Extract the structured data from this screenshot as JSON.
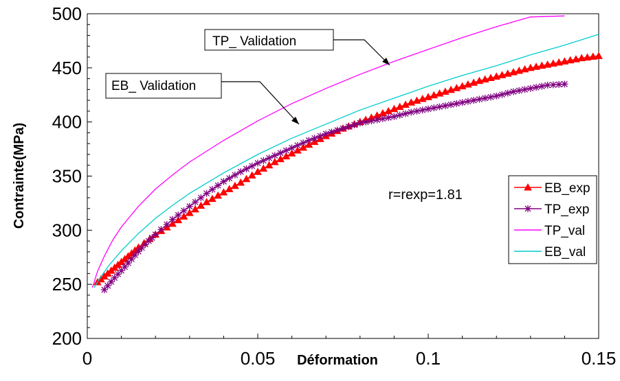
{
  "chart_data": {
    "type": "line",
    "xlabel": "Déformation",
    "ylabel": "Contrainte(MPa)",
    "xlim": [
      0,
      0.15
    ],
    "ylim": [
      200,
      500
    ],
    "x_ticks": [
      "0",
      "0.05",
      "0.1",
      "0.15"
    ],
    "y_ticks": [
      "200",
      "250",
      "300",
      "350",
      "400",
      "450",
      "500"
    ],
    "legend_position": "right",
    "grid": false,
    "annotation_text": "r=rexp=1.81",
    "callouts": [
      {
        "label": "TP_ Validation",
        "series": "TP_val"
      },
      {
        "label": "EB_ Validation",
        "series": "EB_val"
      }
    ],
    "series": [
      {
        "name": "EB_exp",
        "color": "#ff0000",
        "marker": "triangle",
        "x": [
          0.003,
          0.006,
          0.009,
          0.012,
          0.015,
          0.02,
          0.025,
          0.03,
          0.035,
          0.04,
          0.045,
          0.05,
          0.055,
          0.06,
          0.065,
          0.07,
          0.075,
          0.08,
          0.085,
          0.09,
          0.095,
          0.1,
          0.105,
          0.11,
          0.115,
          0.12,
          0.125,
          0.13,
          0.135,
          0.14,
          0.145,
          0.15
        ],
        "y": [
          252,
          260,
          268,
          276,
          284,
          296,
          306,
          316,
          326,
          335,
          344,
          354,
          363,
          371,
          379,
          387,
          394,
          400,
          406,
          412,
          418,
          423,
          428,
          433,
          438,
          442,
          446,
          450,
          453,
          456,
          459,
          461
        ]
      },
      {
        "name": "TP_exp",
        "color": "#800080",
        "marker": "star",
        "x": [
          0.005,
          0.008,
          0.011,
          0.014,
          0.017,
          0.02,
          0.025,
          0.03,
          0.035,
          0.04,
          0.045,
          0.05,
          0.055,
          0.06,
          0.065,
          0.07,
          0.075,
          0.08,
          0.085,
          0.09,
          0.095,
          0.1,
          0.105,
          0.11,
          0.115,
          0.12,
          0.125,
          0.13,
          0.135,
          0.14
        ],
        "y": [
          245,
          256,
          266,
          277,
          287,
          296,
          310,
          322,
          334,
          345,
          354,
          362,
          369,
          376,
          383,
          389,
          394,
          399,
          402,
          405,
          409,
          412,
          415,
          418,
          421,
          424,
          428,
          431,
          434,
          435
        ]
      },
      {
        "name": "TP_val",
        "color": "#ff00ff",
        "marker": "none",
        "x": [
          0.0015,
          0.003,
          0.005,
          0.0075,
          0.01,
          0.015,
          0.02,
          0.025,
          0.03,
          0.04,
          0.05,
          0.06,
          0.07,
          0.08,
          0.09,
          0.1,
          0.11,
          0.12,
          0.13,
          0.14
        ],
        "y": [
          247,
          262,
          276,
          291,
          303,
          322,
          338,
          351,
          363,
          383,
          401,
          417,
          431,
          444,
          456,
          467,
          478,
          488,
          497,
          498
        ]
      },
      {
        "name": "EB_val",
        "color": "#00cccc",
        "marker": "none",
        "x": [
          0.002,
          0.004,
          0.0065,
          0.01,
          0.015,
          0.02,
          0.025,
          0.03,
          0.04,
          0.05,
          0.06,
          0.07,
          0.08,
          0.09,
          0.1,
          0.11,
          0.12,
          0.13,
          0.14,
          0.15
        ],
        "y": [
          247,
          257,
          268,
          281,
          297,
          311,
          323,
          334,
          353,
          370,
          385,
          398,
          411,
          422,
          433,
          443,
          452,
          462,
          471,
          481
        ]
      }
    ]
  }
}
